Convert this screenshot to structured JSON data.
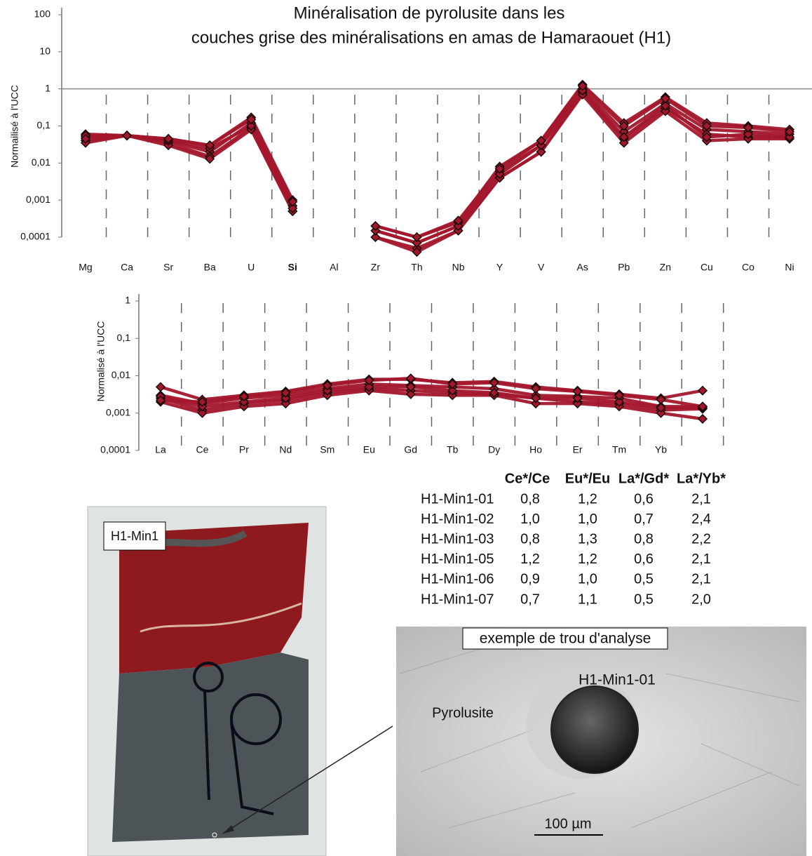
{
  "chart_data": [
    {
      "type": "line",
      "title": [
        "Minéralisation de pyrolusite dans les",
        "couches grise des minéralisations en amas de Hamaraouet (H1)"
      ],
      "y_label": "Normailisé à l'UCC",
      "log_y": true,
      "hline": 1,
      "marker": "diamond",
      "categories": [
        "Mg",
        "Ca",
        "Sr",
        "Ba",
        "U",
        "Si",
        "Al",
        "Zr",
        "Th",
        "Nb",
        "Y",
        "V",
        "As",
        "Pb",
        "Zn",
        "Cu",
        "Co",
        "Ni"
      ],
      "ylim": [
        0.0001,
        100
      ],
      "yticks": [
        {
          "value": 0.0001,
          "label": "0,0001"
        },
        {
          "value": 0.001,
          "label": "0,001"
        },
        {
          "value": 0.01,
          "label": "0,01"
        },
        {
          "value": 0.1,
          "label": "0,1"
        },
        1,
        10,
        100
      ],
      "series": [
        {
          "color": "#a3172c",
          "values": [
            0.06,
            0.055,
            0.045,
            0.03,
            0.17,
            0.001,
            null,
            0.0002,
            0.0001,
            0.00025,
            0.008,
            0.04,
            1.3,
            0.12,
            0.6,
            0.12,
            0.1,
            0.08
          ]
        },
        {
          "color": "#a3172c",
          "values": [
            0.05,
            0.055,
            0.04,
            0.02,
            0.12,
            0.0007,
            null,
            0.00015,
            7e-05,
            0.0002,
            0.006,
            0.03,
            1.0,
            0.07,
            0.4,
            0.08,
            0.07,
            0.06
          ]
        },
        {
          "color": "#a3172c",
          "values": [
            0.04,
            0.055,
            0.035,
            0.015,
            0.09,
            0.0005,
            null,
            0.0001,
            5e-05,
            0.00015,
            0.004,
            0.02,
            0.8,
            0.045,
            0.3,
            0.06,
            0.05,
            0.05
          ]
        },
        {
          "color": "#a3172c",
          "values": [
            0.035,
            0.055,
            0.03,
            0.013,
            0.08,
            0.0005,
            null,
            0.0001,
            4e-05,
            0.00015,
            0.004,
            0.02,
            0.7,
            0.035,
            0.25,
            0.04,
            0.045,
            0.045
          ]
        },
        {
          "color": "#a3172c",
          "values": [
            0.055,
            0.055,
            0.04,
            0.025,
            0.1,
            0.0006,
            null,
            0.00015,
            7e-05,
            0.0002,
            0.005,
            0.03,
            0.9,
            0.05,
            0.35,
            0.05,
            0.06,
            0.05
          ]
        },
        {
          "color": "#a3172c",
          "values": [
            0.045,
            0.055,
            0.045,
            0.03,
            0.15,
            0.0009,
            null,
            0.0002,
            0.0001,
            0.00028,
            0.007,
            0.04,
            1.2,
            0.1,
            0.55,
            0.1,
            0.09,
            0.07
          ]
        }
      ]
    },
    {
      "type": "line",
      "y_label": "Normalisé à l'UCC",
      "log_y": true,
      "marker": "diamond",
      "categories": [
        "La",
        "Ce",
        "Pr",
        "Nd",
        "Sm",
        "Eu",
        "Gd",
        "Tb",
        "Dy",
        "Ho",
        "Er",
        "Tm",
        "Yb",
        null
      ],
      "ylim": [
        0.0001,
        1
      ],
      "yticks": [
        {
          "value": 0.0001,
          "label": "0,0001"
        },
        {
          "value": 0.001,
          "label": "0,001"
        },
        {
          "value": 0.01,
          "label": "0,01"
        },
        {
          "value": 0.1,
          "label": "0,1"
        },
        1
      ],
      "series": [
        {
          "color": "#a3172c",
          "values": [
            0.005,
            0.0023,
            0.003,
            0.0038,
            0.006,
            0.008,
            0.008,
            0.0065,
            0.007,
            0.005,
            0.004,
            0.0032,
            0.0025,
            0.004
          ]
        },
        {
          "color": "#a3172c",
          "values": [
            0.003,
            0.0018,
            0.0025,
            0.003,
            0.0045,
            0.006,
            0.0055,
            0.005,
            0.0045,
            0.003,
            0.0028,
            0.0025,
            0.0015,
            0.0015
          ]
        },
        {
          "color": "#a3172c",
          "values": [
            0.0025,
            0.0012,
            0.0018,
            0.0022,
            0.0035,
            0.0045,
            0.004,
            0.0035,
            0.0032,
            0.0025,
            0.002,
            0.0018,
            0.0012,
            0.0013
          ]
        },
        {
          "color": "#a3172c",
          "values": [
            0.002,
            0.001,
            0.0015,
            0.0018,
            0.003,
            0.004,
            0.0032,
            0.003,
            0.003,
            0.0018,
            0.0018,
            0.0015,
            0.001,
            0.0007
          ]
        },
        {
          "color": "#a3172c",
          "values": [
            0.0028,
            0.0015,
            0.002,
            0.0025,
            0.004,
            0.005,
            0.005,
            0.004,
            0.0035,
            0.0025,
            0.0025,
            0.002,
            0.0014,
            0.0014
          ]
        },
        {
          "color": "#a3172c",
          "values": [
            0.0022,
            0.002,
            0.0028,
            0.0035,
            0.0055,
            0.0075,
            0.0085,
            0.006,
            0.0065,
            0.0045,
            0.0038,
            0.003,
            0.0023,
            0.0015
          ]
        }
      ]
    }
  ],
  "table": {
    "header": [
      "Ce*/Ce",
      "Eu*/Eu",
      "La*/Gd*",
      "La*/Yb*"
    ],
    "rows": [
      [
        "H1-Min1-01",
        "0,8",
        "1,2",
        "0,6",
        "2,1"
      ],
      [
        "H1-Min1-02",
        "1,0",
        "1,0",
        "0,7",
        "2,4"
      ],
      [
        "H1-Min1-03",
        "0,8",
        "1,3",
        "0,8",
        "2,2"
      ],
      [
        "H1-Min1-05",
        "1,2",
        "1,2",
        "0,6",
        "2,1"
      ],
      [
        "H1-Min1-06",
        "0,9",
        "1,0",
        "0,5",
        "2,1"
      ],
      [
        "H1-Min1-07",
        "0,7",
        "1,1",
        "0,5",
        "2,0"
      ]
    ]
  },
  "images": {
    "photo": {
      "label": "H1-Min1"
    },
    "sem": {
      "caption": "exemple de trou d'analyse",
      "sample": "H1-Min1-01",
      "mineral": "Pyrolusite",
      "scale": "100 µm"
    }
  }
}
